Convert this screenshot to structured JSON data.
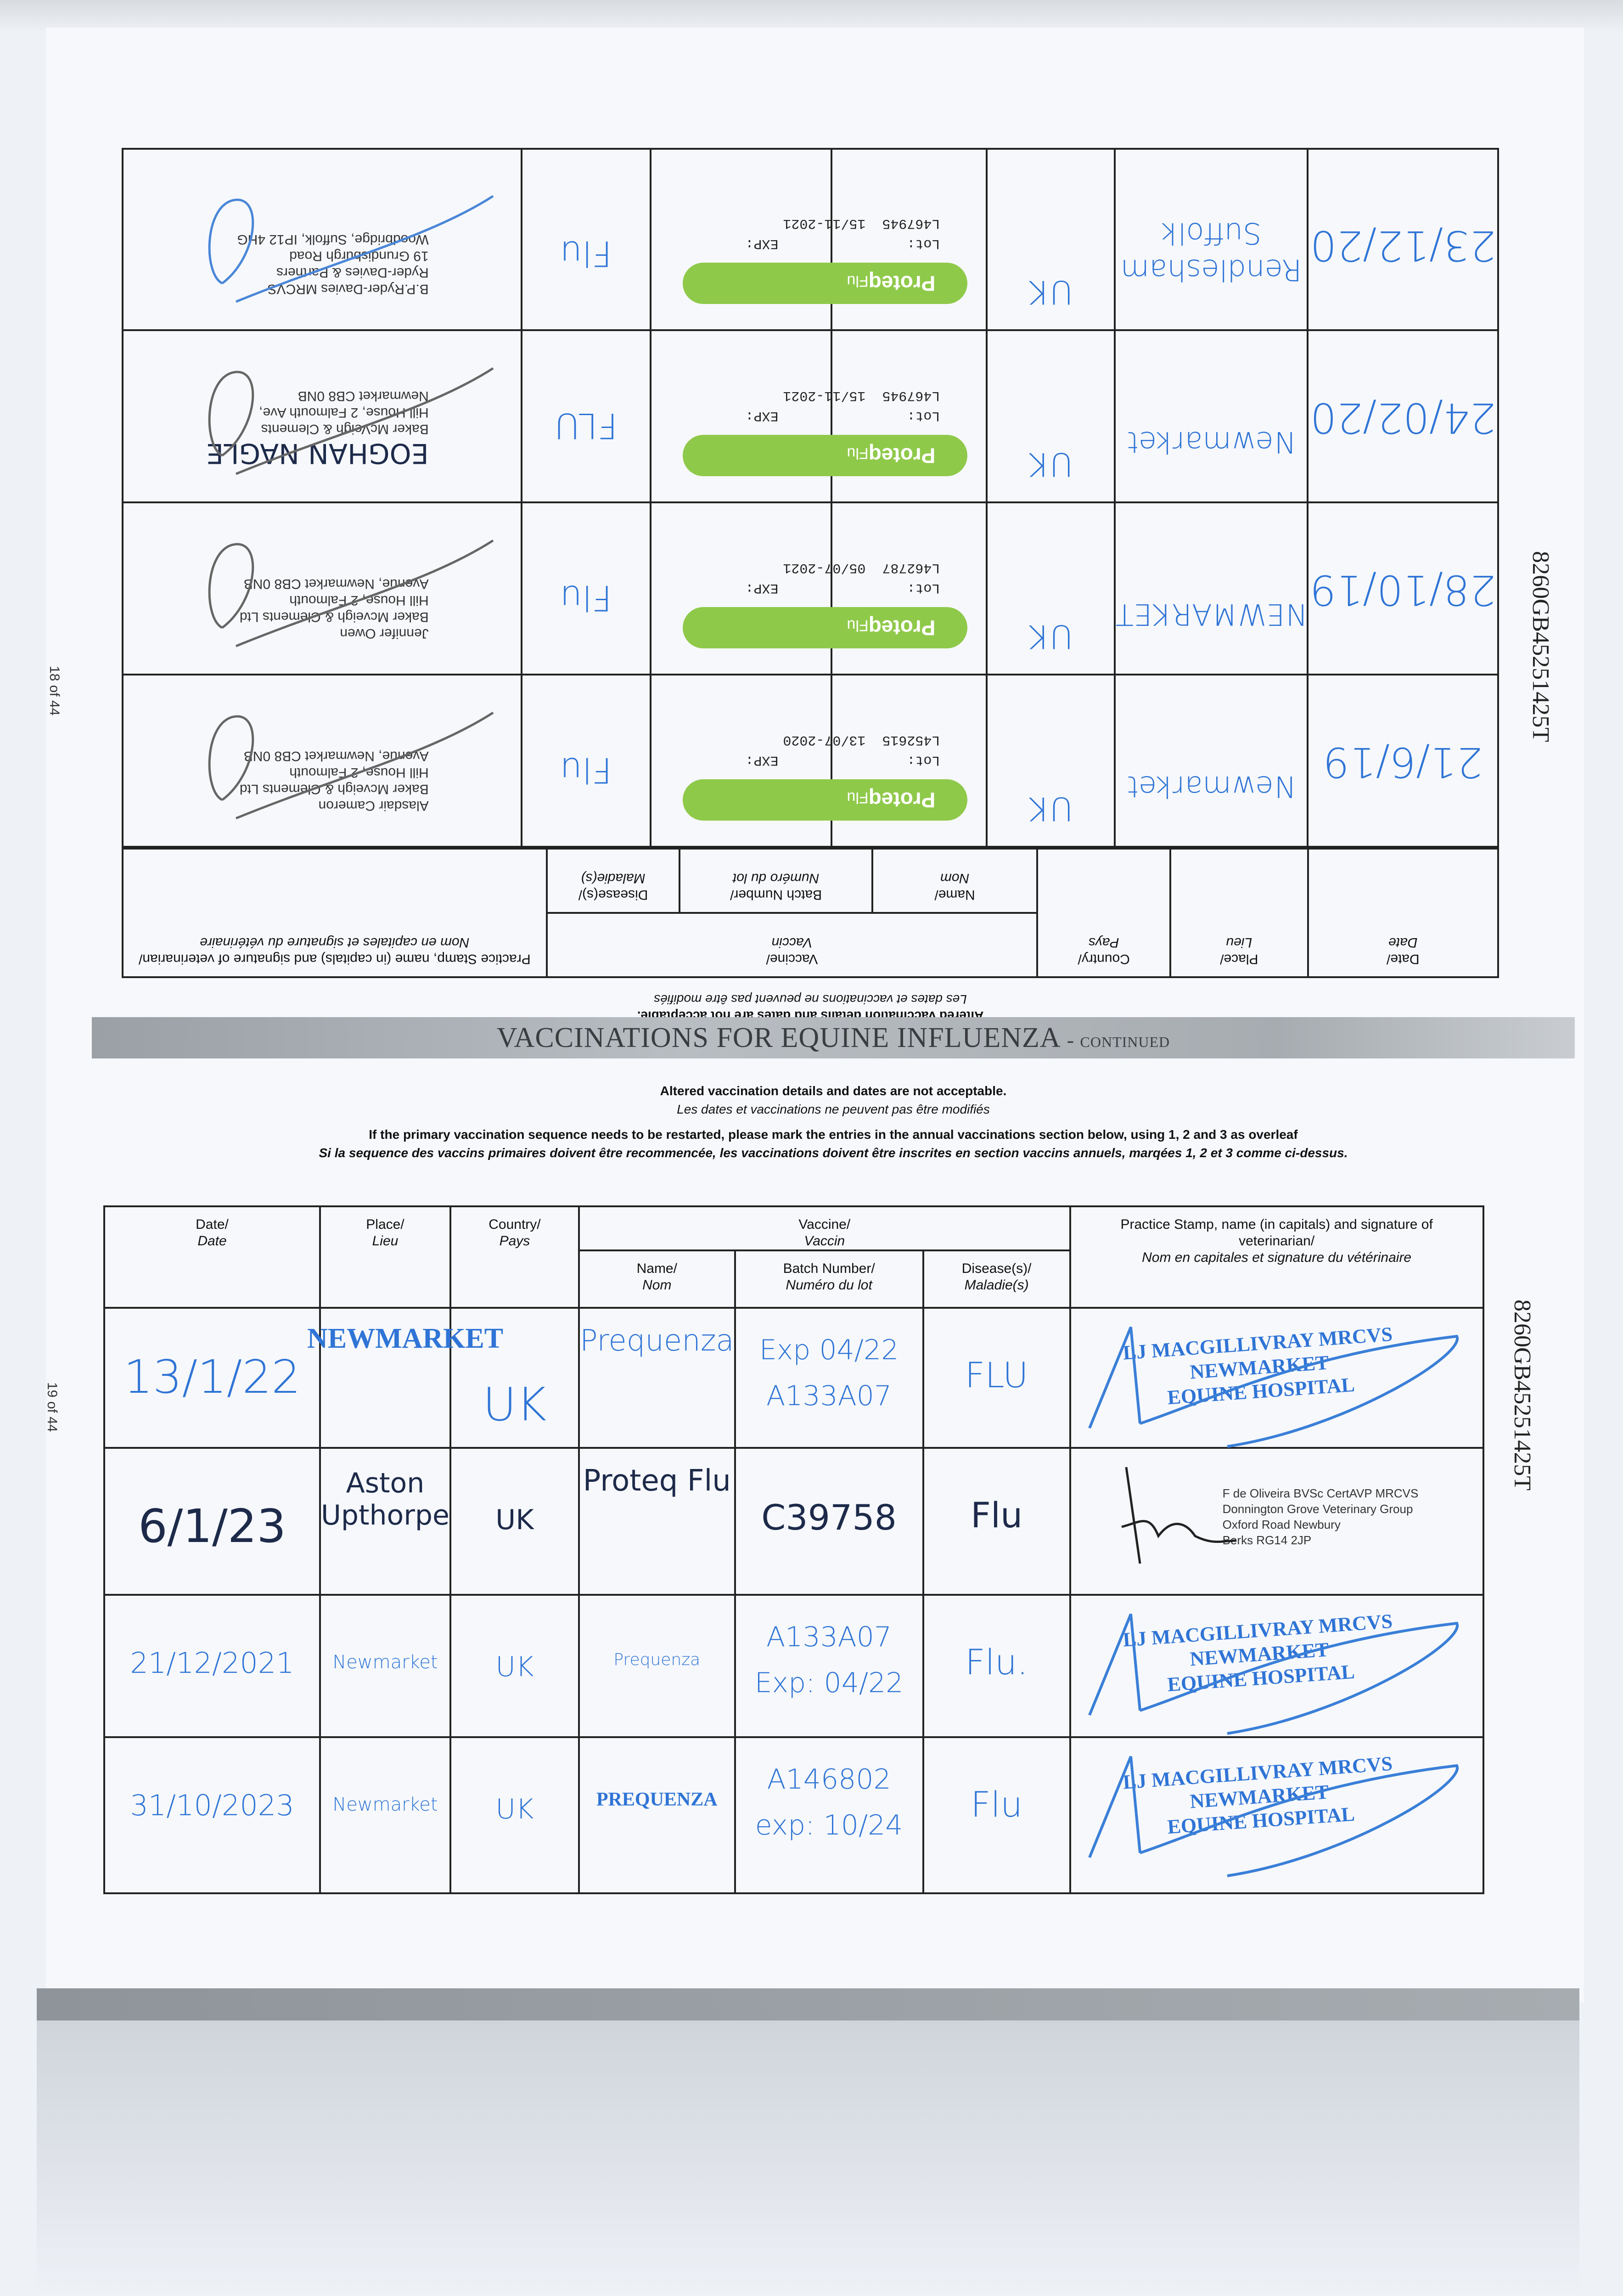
{
  "document": {
    "page_left_number": "18 of 44",
    "page_right_number": "19 of 44",
    "passport_number": "8260GB45251425T",
    "title_main": "VACCINATIONS FOR EQUINE INFLUENZA",
    "title_suffix": "- continued",
    "notice_en": "Altered vaccination details and dates are not acceptable.",
    "notice_fr": "Les dates et vaccinations ne peuvent pas être modifiés",
    "restart_en": "If the primary vaccination sequence needs to be restarted, please mark the entries in the annual vaccinations section below, using 1, 2 and 3 as overleaf",
    "restart_fr": "Si la sequence des vaccins primaires doivent être recommencée, les vaccinations doivent être inscrites en section vaccins annuels, marqées 1, 2 et 3 comme ci-dessus."
  },
  "headers": {
    "date": "Date/",
    "date_fr": "Date",
    "place": "Place/",
    "place_fr": "Lieu",
    "country": "Country/",
    "country_fr": "Pays",
    "vaccine": "Vaccine/",
    "vaccine_fr": "Vaccin",
    "name": "Name/",
    "name_fr": "Nom",
    "batch": "Batch Number/",
    "batch_fr": "Numéro du lot",
    "disease": "Disease(s)/",
    "disease_fr": "Maladie(s)",
    "stamp": "Practice Stamp, name (in capitals) and signature of veterinarian/",
    "stamp_fr": "Nom en capitales et signature du vétérinaire"
  },
  "upper_table": {
    "sticker_brand": "Proteq",
    "sticker_brand_suffix": "Flu",
    "lot_label": "Lot:",
    "exp_label": "EXP:",
    "rows": [
      {
        "date": "21/6/19",
        "place": "Newmarket",
        "country": "UK",
        "lot": "L452615",
        "exp": "13/07-2020",
        "disease": "Flu",
        "stamp": [
          "Alasdair Cameron",
          "Baker Mcveigh & Clements Ltd",
          "Hill House, 2 Falmouth",
          "Avenue, Newmarket CB8 0NB"
        ]
      },
      {
        "date": "28/10/19",
        "place": "NEWMARKET",
        "country": "UK",
        "lot": "L462787",
        "exp": "05/07-2021",
        "disease": "Flu",
        "stamp": [
          "Jennifer Owen",
          "Baker Mcveigh & Clements Ltd",
          "Hill House, 2 Falmouth",
          "Avenue, Newmarket CB8 0NB"
        ]
      },
      {
        "date": "24/02/20",
        "place": "Newmarket",
        "country": "UK",
        "lot": "L467945",
        "exp": "15/11-2021",
        "disease": "FLU",
        "stamp": [
          "EOGHAN NAGLE",
          "Baker McVeigh & Clements",
          "Hill House, 2 Falmouth Ave,",
          "Newmarket CB8 0NB"
        ]
      },
      {
        "date": "23/12/20",
        "place": "Rendlesham Suffolk",
        "country": "UK",
        "lot": "L467945",
        "exp": "15/11-2021",
        "disease": "Flu",
        "stamp": [
          "B.P.Ryder-Davies MRCVS",
          "Ryder-Davies & Partners",
          "19 Grundisburgh Road",
          "Woodbridge, Suffolk, IP12 4HG"
        ]
      }
    ]
  },
  "lower_table": {
    "rows": [
      {
        "date": "13/1/22",
        "place": "NEWMARKET",
        "country": "UK",
        "name": "Prequenza",
        "batch_1": "Exp 04/22",
        "batch_2": "A133A07",
        "disease": "FLU",
        "stamp": [
          "LJ MACGILLIVRAY MRCVS",
          "NEWMARKET",
          "EQUINE HOSPITAL"
        ]
      },
      {
        "date": "6/1/23",
        "place": "Aston Upthorpe",
        "country": "UK",
        "name": "Proteq Flu",
        "batch_1": "C39758",
        "batch_2": "",
        "disease": "Flu",
        "stamp": [
          "F de Oliveira BVSc CertAVP MRCVS",
          "Donnington Grove Veterinary Group",
          "Oxford Road Newbury",
          "Berks RG14 2JP"
        ]
      },
      {
        "date": "21/12/2021",
        "place": "Newmarket",
        "country": "UK",
        "name": "Prequenza",
        "batch_1": "A133A07",
        "batch_2": "Exp: 04/22",
        "disease": "Flu.",
        "stamp": [
          "LJ MACGILLIVRAY MRCVS",
          "NEWMARKET",
          "EQUINE HOSPITAL"
        ]
      },
      {
        "date": "31/10/2023",
        "place": "Newmarket",
        "country": "UK",
        "name": "PREQUENZA",
        "batch_1": "A146802",
        "batch_2": "exp: 10/24",
        "disease": "Flu",
        "stamp": [
          "LJ MACGILLIVRAY MRCVS",
          "NEWMARKET",
          "EQUINE HOSPITAL"
        ]
      }
    ]
  },
  "colors": {
    "ink_blue": "#2f74d6",
    "sticker_green": "#8fc94a",
    "band_grey": "#a7acb1"
  }
}
